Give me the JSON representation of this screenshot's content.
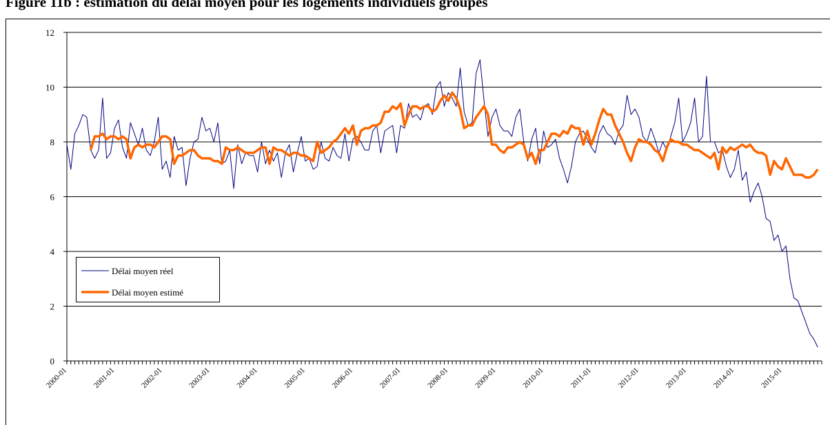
{
  "chart_data": {
    "type": "line",
    "title": "Figure 11b : estimation du délai moyen pour les logements individuels groupés",
    "categories": [
      "2000-01",
      null,
      null,
      null,
      null,
      null,
      null,
      null,
      null,
      null,
      null,
      null,
      "2001-01",
      null,
      null,
      null,
      null,
      null,
      null,
      null,
      null,
      null,
      null,
      null,
      "2002-01",
      null,
      null,
      null,
      null,
      null,
      null,
      null,
      null,
      null,
      null,
      null,
      "2003-01",
      null,
      null,
      null,
      null,
      null,
      null,
      null,
      null,
      null,
      null,
      null,
      "2004-01",
      null,
      null,
      null,
      null,
      null,
      null,
      null,
      null,
      null,
      null,
      null,
      "2005-01",
      null,
      null,
      null,
      null,
      null,
      null,
      null,
      null,
      null,
      null,
      null,
      "2006-01",
      null,
      null,
      null,
      null,
      null,
      null,
      null,
      null,
      null,
      null,
      null,
      "2007-01",
      null,
      null,
      null,
      null,
      null,
      null,
      null,
      null,
      null,
      null,
      null,
      "2008-01",
      null,
      null,
      null,
      null,
      null,
      null,
      null,
      null,
      null,
      null,
      null,
      "2009-01",
      null,
      null,
      null,
      null,
      null,
      null,
      null,
      null,
      null,
      null,
      null,
      "2010-01",
      null,
      null,
      null,
      null,
      null,
      null,
      null,
      null,
      null,
      null,
      null,
      "2011-01",
      null,
      null,
      null,
      null,
      null,
      null,
      null,
      null,
      null,
      null,
      null,
      "2012-01",
      null,
      null,
      null,
      null,
      null,
      null,
      null,
      null,
      null,
      null,
      null,
      "2013-01",
      null,
      null,
      null,
      null,
      null,
      null,
      null,
      null,
      null,
      null,
      null,
      "2014-01",
      null,
      null,
      null,
      null,
      null,
      null,
      null,
      null,
      null,
      null,
      null,
      "2015-01",
      null,
      null,
      null,
      null,
      null,
      null,
      null,
      null,
      null
    ],
    "series": [
      {
        "name": "Délai moyen réel",
        "color": "#000080",
        "width": 1,
        "values": [
          7.9,
          7.0,
          8.3,
          8.6,
          9.0,
          8.9,
          7.7,
          7.4,
          7.7,
          9.6,
          7.4,
          7.6,
          8.5,
          8.8,
          7.8,
          7.4,
          8.7,
          8.3,
          7.9,
          8.5,
          7.7,
          7.5,
          8.0,
          8.9,
          7.0,
          7.3,
          6.7,
          8.2,
          7.7,
          7.8,
          6.4,
          7.4,
          8.0,
          8.1,
          8.9,
          8.4,
          8.5,
          8.0,
          8.7,
          7.2,
          7.3,
          7.7,
          6.3,
          7.9,
          7.2,
          7.6,
          7.5,
          7.5,
          6.9,
          8.0,
          7.2,
          7.7,
          7.3,
          7.6,
          6.7,
          7.6,
          7.9,
          6.9,
          7.6,
          8.2,
          7.3,
          7.4,
          7.0,
          7.1,
          8.0,
          7.4,
          7.3,
          7.8,
          7.5,
          7.4,
          8.3,
          7.3,
          8.1,
          8.2,
          8.0,
          7.7,
          7.7,
          8.4,
          8.6,
          7.6,
          8.4,
          8.5,
          8.6,
          7.6,
          8.6,
          8.5,
          9.4,
          8.9,
          9.0,
          8.8,
          9.3,
          9.4,
          9.0,
          10.0,
          10.2,
          9.3,
          9.8,
          9.6,
          9.3,
          10.7,
          9.1,
          8.6,
          8.7,
          10.5,
          11.0,
          9.5,
          8.2,
          8.9,
          9.2,
          8.6,
          8.4,
          8.4,
          8.2,
          8.9,
          9.2,
          8.0,
          7.3,
          8.1,
          8.5,
          7.2,
          8.4,
          7.8,
          7.9,
          8.1,
          7.4,
          7.0,
          6.5,
          7.1,
          8.0,
          8.3,
          8.4,
          8.1,
          7.8,
          7.6,
          8.3,
          8.6,
          8.3,
          8.2,
          7.9,
          8.4,
          8.6,
          9.7,
          9.0,
          9.2,
          8.9,
          8.2,
          8.0,
          8.5,
          8.1,
          7.6,
          8.0,
          7.7,
          8.2,
          8.7,
          9.6,
          8.0,
          8.3,
          8.7,
          9.6,
          8.0,
          8.2,
          10.4,
          8.0,
          8.0,
          7.6,
          7.7,
          7.1,
          6.7,
          7.0,
          7.7,
          6.6,
          6.9,
          5.8,
          6.2,
          6.5,
          6.0,
          5.2,
          5.1,
          4.4,
          4.6,
          4.0,
          4.2,
          3.0,
          2.3,
          2.2,
          1.8,
          1.4,
          1.0,
          0.8,
          0.5
        ]
      },
      {
        "name": "Délai moyen estimé",
        "color": "#ff6600",
        "width": 3.5,
        "values": [
          null,
          null,
          null,
          null,
          null,
          null,
          7.7,
          8.2,
          8.2,
          8.3,
          8.1,
          8.2,
          8.2,
          8.1,
          8.2,
          8.1,
          7.4,
          7.8,
          7.9,
          7.8,
          7.9,
          7.9,
          7.8,
          8.0,
          8.2,
          8.2,
          8.1,
          7.2,
          7.5,
          7.5,
          7.6,
          7.7,
          7.7,
          7.5,
          7.4,
          7.4,
          7.4,
          7.3,
          7.3,
          7.2,
          7.8,
          7.7,
          7.7,
          7.8,
          7.7,
          7.6,
          7.6,
          7.6,
          7.7,
          7.8,
          7.8,
          7.2,
          7.8,
          7.7,
          7.7,
          7.6,
          7.5,
          7.6,
          7.6,
          7.5,
          7.5,
          7.4,
          7.3,
          8.0,
          7.6,
          7.7,
          7.8,
          8.0,
          8.1,
          8.3,
          8.5,
          8.3,
          8.6,
          7.9,
          8.4,
          8.5,
          8.5,
          8.6,
          8.6,
          8.7,
          9.1,
          9.1,
          9.3,
          9.2,
          9.4,
          8.6,
          9.0,
          9.3,
          9.3,
          9.2,
          9.3,
          9.3,
          9.1,
          9.2,
          9.5,
          9.7,
          9.5,
          9.8,
          9.6,
          9.2,
          8.5,
          8.6,
          8.6,
          8.9,
          9.1,
          9.3,
          9.0,
          7.9,
          7.9,
          7.7,
          7.6,
          7.8,
          7.8,
          7.9,
          8.0,
          7.9,
          7.4,
          7.6,
          7.2,
          7.7,
          7.7,
          8.0,
          8.3,
          8.3,
          8.2,
          8.4,
          8.3,
          8.6,
          8.5,
          8.5,
          7.9,
          8.4,
          7.9,
          8.3,
          8.8,
          9.2,
          9.0,
          9.0,
          8.6,
          8.3,
          8.0,
          7.6,
          7.3,
          7.8,
          8.1,
          8.0,
          8.0,
          7.9,
          7.7,
          7.6,
          7.3,
          7.8,
          8.1,
          8.0,
          8.0,
          7.9,
          7.9,
          7.8,
          7.7,
          7.7,
          7.6,
          7.5,
          7.4,
          7.6,
          7.0,
          7.8,
          7.6,
          7.8,
          7.7,
          7.8,
          7.9,
          7.8,
          7.9,
          7.7,
          7.6,
          7.6,
          7.5,
          6.8,
          7.3,
          7.1,
          7.0,
          7.4,
          7.1,
          6.8,
          6.8,
          6.8,
          6.7,
          6.7,
          6.8,
          7.0
        ]
      }
    ],
    "ylim": [
      0,
      12
    ],
    "yticks": [
      0,
      2,
      4,
      6,
      8,
      10,
      12
    ],
    "grid": true
  }
}
